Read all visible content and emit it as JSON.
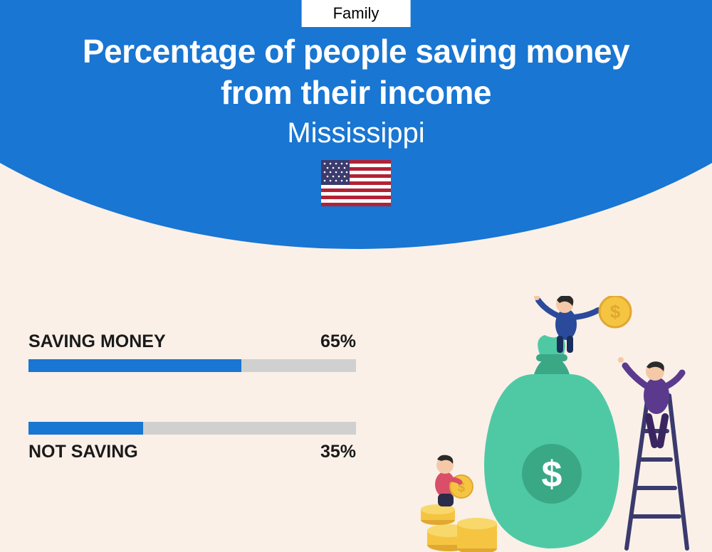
{
  "category": "Family",
  "title_line1": "Percentage of people saving money",
  "title_line2": "from their income",
  "location": "Mississippi",
  "colors": {
    "primary": "#1976d2",
    "track": "#d0d0d0",
    "background": "#faf0e8",
    "text": "#1a1a1a"
  },
  "flag": {
    "canton_color": "#3c3b6e",
    "stripe_red": "#b22234",
    "stripe_white": "#ffffff"
  },
  "bars": [
    {
      "label": "SAVING MONEY",
      "value": 65,
      "display": "65%",
      "label_position": "above"
    },
    {
      "label": "NOT SAVING",
      "value": 35,
      "display": "35%",
      "label_position": "below"
    }
  ],
  "illustration": {
    "bag_color": "#4fc9a4",
    "bag_dark": "#3aa885",
    "coin_gold": "#f5c542",
    "coin_dark": "#e0a830",
    "person1_shirt": "#2b4a9b",
    "person1_pants": "#1a2e5c",
    "person2_shirt": "#5b3a8e",
    "person2_pants": "#3a2560",
    "person3_shirt": "#d94f6a",
    "person3_pants": "#2b2b4a",
    "skin": "#f5c9a8",
    "hair": "#2a2a2a",
    "ladder": "#3a3a6e"
  }
}
